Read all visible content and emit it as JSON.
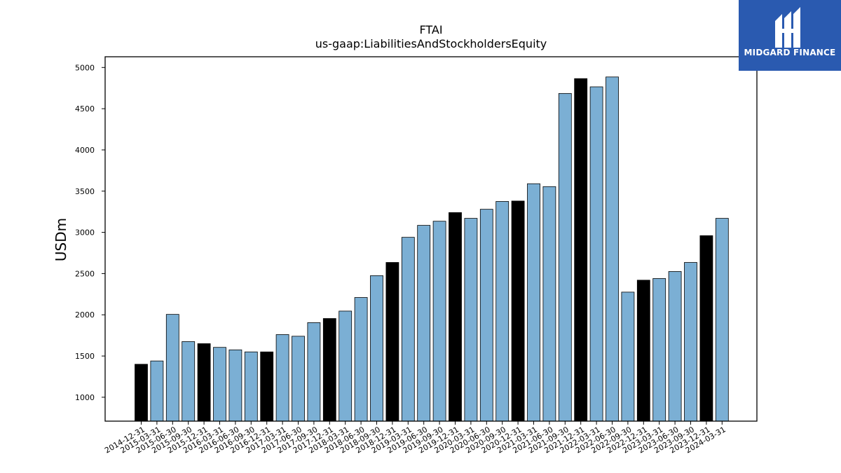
{
  "logo": {
    "text": "MIDGARD FINANCE"
  },
  "colors": {
    "normal_bar": "#7bafd4",
    "year_end_bar": "#000000",
    "logo_bg": "#2a5ab0"
  },
  "chart_data": {
    "type": "bar",
    "title": "FTAI",
    "subtitle": "us-gaap:LiabilitiesAndStockholdersEquity",
    "xlabel": "",
    "ylabel": "USDm",
    "ylim": [
      710,
      5130
    ],
    "yticks": [
      1000,
      1500,
      2000,
      2500,
      3000,
      3500,
      4000,
      4500,
      5000
    ],
    "grid": false,
    "categories": [
      "2014-12-31",
      "2015-03-31",
      "2015-06-30",
      "2015-09-30",
      "2015-12-31",
      "2016-03-31",
      "2016-06-30",
      "2016-09-30",
      "2016-12-31",
      "2017-03-31",
      "2017-06-30",
      "2017-09-30",
      "2017-12-31",
      "2018-03-31",
      "2018-06-30",
      "2018-09-30",
      "2018-12-31",
      "2019-03-31",
      "2019-06-30",
      "2019-09-30",
      "2019-12-31",
      "2020-03-31",
      "2020-06-30",
      "2020-09-30",
      "2020-12-31",
      "2021-03-31",
      "2021-06-30",
      "2021-09-30",
      "2021-12-31",
      "2022-03-31",
      "2022-06-30",
      "2022-09-30",
      "2022-12-31",
      "2023-03-31",
      "2023-06-30",
      "2023-09-30",
      "2023-12-31",
      "2024-03-31"
    ],
    "values": [
      1400,
      1440,
      2005,
      1675,
      1650,
      1605,
      1575,
      1550,
      1550,
      1760,
      1740,
      1905,
      1955,
      2045,
      2210,
      2475,
      2635,
      2940,
      3085,
      3135,
      3240,
      3170,
      3280,
      3375,
      3380,
      3590,
      3555,
      4685,
      4865,
      4765,
      4885,
      2275,
      2420,
      2440,
      2525,
      2635,
      2960,
      3170
    ],
    "highlight": [
      true,
      false,
      false,
      false,
      true,
      false,
      false,
      false,
      true,
      false,
      false,
      false,
      true,
      false,
      false,
      false,
      true,
      false,
      false,
      false,
      true,
      false,
      false,
      false,
      true,
      false,
      false,
      false,
      true,
      false,
      false,
      false,
      true,
      false,
      false,
      false,
      true,
      false
    ]
  }
}
